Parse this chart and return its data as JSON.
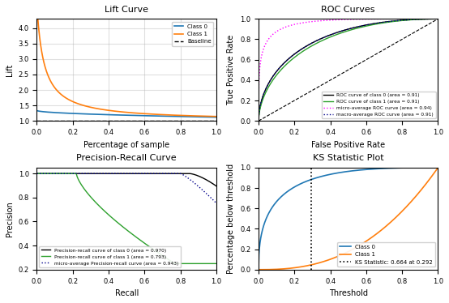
{
  "lift_title": "Lift Curve",
  "lift_xlabel": "Percentage of sample",
  "lift_ylabel": "Lift",
  "lift_ylim": [
    1.0,
    4.3
  ],
  "lift_xlim": [
    0.0,
    1.0
  ],
  "roc_title": "ROC Curves",
  "roc_xlabel": "False Positive Rate",
  "roc_ylabel": "True Positive Rate",
  "roc_class0_area": "0.91",
  "roc_class1_area": "0.91",
  "roc_micro_area": "0.94",
  "roc_macro_area": "0.91",
  "pr_title": "Precision-Recall Curve",
  "pr_xlabel": "Recall",
  "pr_ylabel": "Precision",
  "pr_class0_area": "0.970",
  "pr_class1_area": "0.793",
  "pr_micro_area": "0.943",
  "ks_title": "KS Statistic Plot",
  "ks_xlabel": "Threshold",
  "ks_ylabel": "Percentage below threshold",
  "ks_stat": 0.664,
  "ks_threshold": 0.292,
  "color_class0": "#1f77b4",
  "color_class1": "#ff7f0e",
  "color_black": "#000000",
  "color_green": "#2ca02c",
  "color_magenta": "#ff00ff",
  "color_blue_dark": "#00008B",
  "color_baseline": "#000000"
}
